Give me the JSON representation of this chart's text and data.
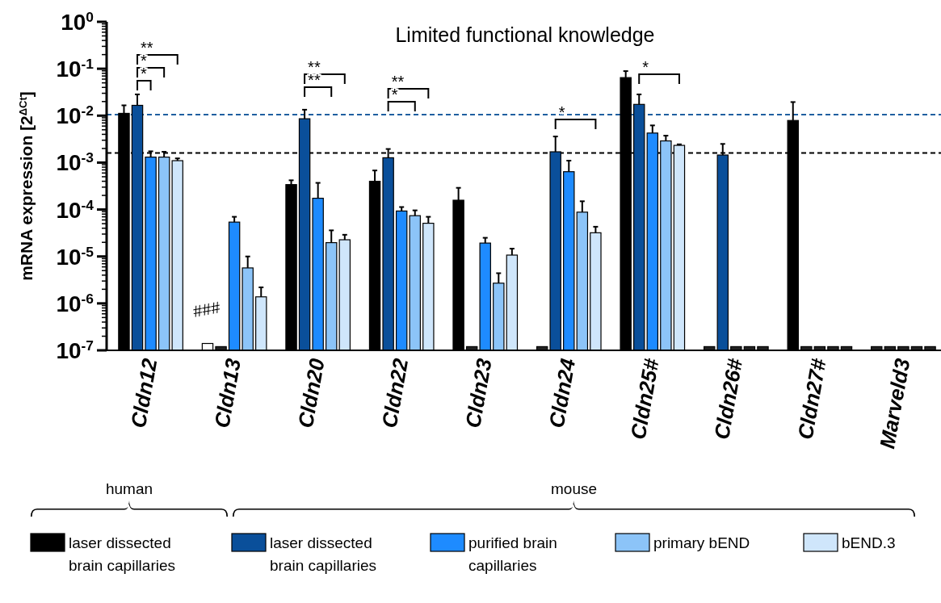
{
  "chart_data": {
    "type": "bar",
    "title": "Limited functional knowledge",
    "ylabel": "mRNA expression [2$^{ΔCt}$]",
    "log": true,
    "categories": [
      "Cldn12",
      "Cldn13",
      "Cldn20",
      "Cldn22",
      "Cldn23",
      "Cldn24",
      "Cldn25#",
      "Cldn26#",
      "Cldn27#",
      "Marveld3"
    ],
    "ylim": [
      1e-07,
      1
    ],
    "yticks": [
      {
        "value": 1e-07,
        "label": "10$^{-7}$"
      },
      {
        "value": 2e-07,
        "label": null
      },
      {
        "value": 3e-07,
        "label": null
      },
      {
        "value": 4e-07,
        "label": null
      },
      {
        "value": 5e-07,
        "label": null
      },
      {
        "value": 6e-07,
        "label": null
      },
      {
        "value": 7e-07,
        "label": null
      },
      {
        "value": 8e-07,
        "label": null
      },
      {
        "value": 9e-07,
        "label": null
      },
      {
        "value": 1e-06,
        "label": "10$^{-6}$"
      },
      {
        "value": 2e-06,
        "label": null
      },
      {
        "value": 3e-06,
        "label": null
      },
      {
        "value": 4e-06,
        "label": null
      },
      {
        "value": 5e-06,
        "label": null
      },
      {
        "value": 6e-06,
        "label": null
      },
      {
        "value": 7e-06,
        "label": null
      },
      {
        "value": 8e-06,
        "label": null
      },
      {
        "value": 9e-06,
        "label": null
      },
      {
        "value": 1e-05,
        "label": "10$^{-5}$"
      },
      {
        "value": 2e-05,
        "label": null
      },
      {
        "value": 3e-05,
        "label": null
      },
      {
        "value": 4e-05,
        "label": null
      },
      {
        "value": 5e-05,
        "label": null
      },
      {
        "value": 6e-05,
        "label": null
      },
      {
        "value": 7e-05,
        "label": null
      },
      {
        "value": 8e-05,
        "label": null
      },
      {
        "value": 9e-05,
        "label": null
      },
      {
        "value": 0.0001,
        "label": "10$^{-4}$"
      },
      {
        "value": 0.0002,
        "label": null
      },
      {
        "value": 0.0003,
        "label": null
      },
      {
        "value": 0.0004,
        "label": null
      },
      {
        "value": 0.0005,
        "label": null
      },
      {
        "value": 0.0006,
        "label": null
      },
      {
        "value": 0.0007,
        "label": null
      },
      {
        "value": 0.0008,
        "label": null
      },
      {
        "value": 0.0009,
        "label": null
      },
      {
        "value": 0.001,
        "label": "10$^{-3}$"
      },
      {
        "value": 0.002,
        "label": null
      },
      {
        "value": 0.003,
        "label": null
      },
      {
        "value": 0.004,
        "label": null
      },
      {
        "value": 0.005,
        "label": null
      },
      {
        "value": 0.006,
        "label": null
      },
      {
        "value": 0.007,
        "label": null
      },
      {
        "value": 0.008,
        "label": null
      },
      {
        "value": 0.009,
        "label": null
      },
      {
        "value": 0.01,
        "label": "10$^{-2}$"
      },
      {
        "value": 0.02,
        "label": null
      },
      {
        "value": 0.03,
        "label": null
      },
      {
        "value": 0.04,
        "label": null
      },
      {
        "value": 0.05,
        "label": null
      },
      {
        "value": 0.06,
        "label": null
      },
      {
        "value": 0.07,
        "label": null
      },
      {
        "value": 0.08,
        "label": null
      },
      {
        "value": 0.09,
        "label": null
      },
      {
        "value": 0.1,
        "label": "10$^{-1}$"
      },
      {
        "value": 0.2,
        "label": null
      },
      {
        "value": 0.3,
        "label": null
      },
      {
        "value": 0.4,
        "label": null
      },
      {
        "value": 0.5,
        "label": null
      },
      {
        "value": 0.6,
        "label": null
      },
      {
        "value": 0.7,
        "label": null
      },
      {
        "value": 0.8,
        "label": null
      },
      {
        "value": 0.9,
        "label": null
      },
      {
        "value": 1,
        "label": "10$^{0}$"
      }
    ],
    "grid": false,
    "legend": "bottom",
    "series": [
      {
        "name": "laser dissected brain capillaries",
        "color": "#000000",
        "colors": [
          "#000000",
          "#ffffff",
          "#000000",
          "#000000",
          "#000000",
          "#222222",
          "#000000",
          "#222222",
          "#000000",
          "#222222"
        ],
        "values": [
          0.0112,
          1.4e-07,
          0.00034,
          0.0004,
          0.000158,
          1.2e-07,
          0.0647,
          1.2e-07,
          0.0079,
          1.2e-07
        ],
        "errors": [
          [
            0.0112,
            0.0166
          ],
          null,
          [
            0.00034,
            0.00042
          ],
          [
            0.0004,
            0.00068
          ],
          [
            0.000158,
            0.00029
          ],
          null,
          [
            0.0647,
            0.089
          ],
          null,
          [
            0.0079,
            0.0195
          ],
          null
        ]
      },
      {
        "name": "laser dissected brain capillaries",
        "color": "#0a4f9a",
        "colors": [
          "#0a4f9a",
          "#222222",
          "#0a4f9a",
          "#0a4f9a",
          "#222222",
          "#0a4f9a",
          "#0a4f9a",
          "#0a4f9a",
          "#222222",
          "#222222"
        ],
        "values": [
          0.0166,
          1.2e-07,
          0.0086,
          0.00127,
          1.2e-07,
          0.0017,
          0.0174,
          0.00145,
          1.2e-07,
          1.2e-07
        ],
        "errors": [
          [
            0.0166,
            0.0284
          ],
          null,
          [
            0.0086,
            0.0134
          ],
          [
            0.00127,
            0.00195
          ],
          null,
          [
            0.0017,
            0.0036
          ],
          [
            0.0174,
            0.0284
          ],
          [
            0.00145,
            0.0025
          ],
          null,
          null
        ]
      },
      {
        "name": "purified brain capillaries",
        "color": "#1e8bff",
        "colors": [
          "#1e8bff",
          "#1e8bff",
          "#1e8bff",
          "#1e8bff",
          "#1e8bff",
          "#1e8bff",
          "#1e8bff",
          "#222222",
          "#222222",
          "#222222"
        ],
        "values": [
          0.00131,
          5.4e-05,
          0.000174,
          9.3e-05,
          1.93e-05,
          0.00064,
          0.00426,
          1.2e-07,
          1.2e-07,
          1.2e-07
        ],
        "errors": [
          [
            0.00131,
            0.00174
          ],
          [
            5.4e-05,
            7e-05
          ],
          [
            0.000174,
            0.00037
          ],
          [
            9.3e-05,
            0.000113
          ],
          [
            1.93e-05,
            2.5e-05
          ],
          [
            0.00064,
            0.0011
          ],
          [
            0.00426,
            0.0062
          ],
          null,
          null,
          null
        ]
      },
      {
        "name": "primary bEND",
        "color": "#8cc4f8",
        "colors": [
          "#8cc4f8",
          "#8cc4f8",
          "#8cc4f8",
          "#8cc4f8",
          "#8cc4f8",
          "#8cc4f8",
          "#8cc4f8",
          "#222222",
          "#222222",
          "#222222"
        ],
        "values": [
          0.00131,
          5.7e-06,
          1.97e-05,
          7.4e-05,
          2.7e-06,
          8.8e-05,
          0.0029,
          1.2e-07,
          1.2e-07,
          1.2e-07
        ],
        "errors": [
          [
            0.00131,
            0.0017
          ],
          [
            5.7e-06,
            1e-05
          ],
          [
            1.97e-05,
            3.6e-05
          ],
          [
            7.4e-05,
            9.6e-05
          ],
          [
            2.7e-06,
            4.4e-06
          ],
          [
            8.8e-05,
            0.00015
          ],
          [
            0.0029,
            0.00375
          ],
          null,
          null,
          null
        ]
      },
      {
        "name": "bEND.3",
        "color": "#cfe6fb",
        "colors": [
          "#cfe6fb",
          "#cfe6fb",
          "#cfe6fb",
          "#cfe6fb",
          "#cfe6fb",
          "#cfe6fb",
          "#cfe6fb",
          "#222222",
          "#222222",
          "#222222"
        ],
        "values": [
          0.0011,
          1.38e-06,
          2.27e-05,
          5.1e-05,
          1.07e-05,
          3.2e-05,
          0.00233,
          1.2e-07,
          1.2e-07,
          1.2e-07
        ],
        "errors": [
          [
            0.0011,
            0.00123
          ],
          [
            1.38e-06,
            2.2e-06
          ],
          [
            2.27e-05,
            2.9e-05
          ],
          [
            5.1e-05,
            7e-05
          ],
          [
            1.07e-05,
            1.47e-05
          ],
          [
            3.2e-05,
            4.3e-05
          ],
          [
            0.00233,
            0.00245
          ],
          null,
          null,
          null
        ]
      }
    ],
    "ref_lines": [
      {
        "axis": "y",
        "value": 0.0105,
        "color": "#1f5fa0",
        "line_style": "dashed"
      },
      {
        "axis": "y",
        "value": 0.0016,
        "color": "#000000",
        "line_style": "dashed"
      }
    ],
    "annotations": [
      "**",
      "*",
      "*",
      "###",
      "**",
      "**",
      "**",
      "*",
      "*",
      "*",
      "human",
      "mouse"
    ]
  }
}
